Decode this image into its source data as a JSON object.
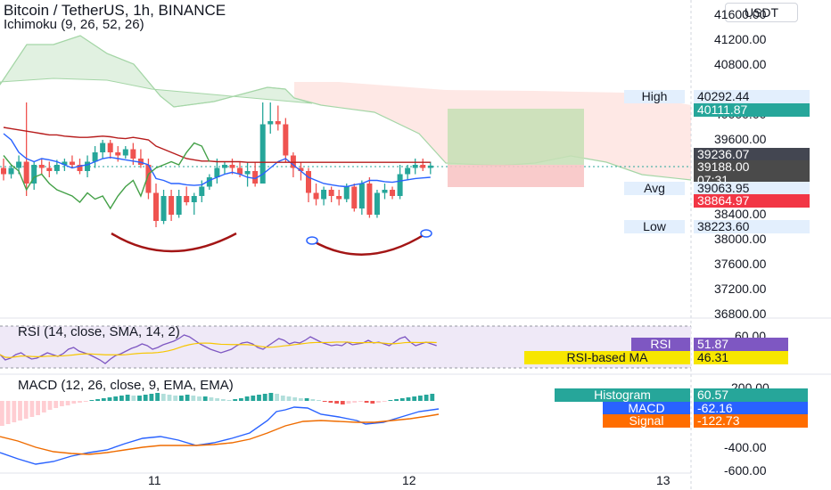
{
  "header": {
    "title": "Bitcoin / TetherUS, 1h, BINANCE",
    "indicator": "Ichimoku (9, 26, 52, 26)",
    "currency": "USDT"
  },
  "price_axis": {
    "ticks": [
      "41600.00",
      "41200.00",
      "40800.00",
      "40000.00",
      "39600.00",
      "38400.00",
      "38000.00",
      "37600.00",
      "37200.00",
      "36800.00"
    ]
  },
  "price_labels": {
    "high": {
      "name": "High",
      "value": "40292.44"
    },
    "span_a": {
      "value": "40111.87",
      "color": "#26a69a"
    },
    "last": {
      "value": "39236.07",
      "color": "#434651"
    },
    "current": {
      "value": "39188.00",
      "countdown": "07:31",
      "color": "#4a4a4a"
    },
    "avg": {
      "name": "Avg",
      "value": "39063.95"
    },
    "span_b": {
      "value": "38864.97",
      "color": "#f23645"
    },
    "low": {
      "name": "Low",
      "value": "38223.60"
    }
  },
  "rsi": {
    "title": "RSI (14, close, SMA, 14, 2)",
    "axis_top": "60.00",
    "rsi_name": "RSI",
    "rsi_value": "51.87",
    "rsi_color": "#7e57c2",
    "ma_name": "RSI-based MA",
    "ma_value": "46.31",
    "ma_color": "#f7e600"
  },
  "macd": {
    "title": "MACD (12, 26, close, 9, EMA, EMA)",
    "axis_ticks": [
      "200.00",
      "-400.00",
      "-600.00"
    ],
    "histogram_name": "Histogram",
    "histogram_value": "60.57",
    "histogram_color": "#26a69a",
    "macd_name": "MACD",
    "macd_value": "-62.16",
    "macd_color": "#2962ff",
    "signal_name": "Signal",
    "signal_value": "-122.73",
    "signal_color": "#ff6d00"
  },
  "time_axis": {
    "labels": [
      "11",
      "12",
      "13"
    ]
  },
  "chart_data": {
    "type": "candlestick",
    "title": "Bitcoin / TetherUS, 1h, BINANCE",
    "ylim": [
      36600,
      41700
    ],
    "candles": [
      {
        "o": 39150,
        "h": 39300,
        "l": 38950,
        "c": 39050
      },
      {
        "o": 39050,
        "h": 39200,
        "l": 38980,
        "c": 39150
      },
      {
        "o": 39150,
        "h": 39350,
        "l": 39050,
        "c": 39250
      },
      {
        "o": 39250,
        "h": 40200,
        "l": 38700,
        "c": 38900
      },
      {
        "o": 38900,
        "h": 39250,
        "l": 38800,
        "c": 39200
      },
      {
        "o": 39200,
        "h": 39300,
        "l": 39050,
        "c": 39150
      },
      {
        "o": 39150,
        "h": 39250,
        "l": 39000,
        "c": 39100
      },
      {
        "o": 39100,
        "h": 39280,
        "l": 39050,
        "c": 39200
      },
      {
        "o": 39200,
        "h": 39300,
        "l": 39100,
        "c": 39250
      },
      {
        "o": 39250,
        "h": 39350,
        "l": 39150,
        "c": 39200
      },
      {
        "o": 39200,
        "h": 39300,
        "l": 39050,
        "c": 39100
      },
      {
        "o": 39100,
        "h": 39350,
        "l": 39000,
        "c": 39250
      },
      {
        "o": 39250,
        "h": 39500,
        "l": 39150,
        "c": 39400
      },
      {
        "o": 39400,
        "h": 39600,
        "l": 39300,
        "c": 39550
      },
      {
        "o": 39550,
        "h": 39600,
        "l": 39300,
        "c": 39400
      },
      {
        "o": 39400,
        "h": 39500,
        "l": 39250,
        "c": 39350
      },
      {
        "o": 39350,
        "h": 39500,
        "l": 39300,
        "c": 39450
      },
      {
        "o": 39450,
        "h": 39550,
        "l": 39200,
        "c": 39300
      },
      {
        "o": 39300,
        "h": 39450,
        "l": 39150,
        "c": 39200
      },
      {
        "o": 39200,
        "h": 39300,
        "l": 38650,
        "c": 38750
      },
      {
        "o": 38750,
        "h": 38900,
        "l": 38200,
        "c": 38300
      },
      {
        "o": 38300,
        "h": 38800,
        "l": 38250,
        "c": 38700
      },
      {
        "o": 38700,
        "h": 38800,
        "l": 38300,
        "c": 38400
      },
      {
        "o": 38400,
        "h": 38800,
        "l": 38350,
        "c": 38700
      },
      {
        "o": 38700,
        "h": 38850,
        "l": 38550,
        "c": 38600
      },
      {
        "o": 38600,
        "h": 38750,
        "l": 38400,
        "c": 38700
      },
      {
        "o": 38700,
        "h": 38950,
        "l": 38600,
        "c": 38850
      },
      {
        "o": 38850,
        "h": 39050,
        "l": 38800,
        "c": 39000
      },
      {
        "o": 39000,
        "h": 39300,
        "l": 38900,
        "c": 39150
      },
      {
        "o": 39150,
        "h": 39250,
        "l": 39050,
        "c": 39200
      },
      {
        "o": 39200,
        "h": 39300,
        "l": 39050,
        "c": 39150
      },
      {
        "o": 39150,
        "h": 39250,
        "l": 39000,
        "c": 39050
      },
      {
        "o": 39050,
        "h": 39250,
        "l": 38850,
        "c": 39100
      },
      {
        "o": 39100,
        "h": 39250,
        "l": 38850,
        "c": 38900
      },
      {
        "o": 38900,
        "h": 40200,
        "l": 38900,
        "c": 39850
      },
      {
        "o": 39850,
        "h": 40200,
        "l": 39700,
        "c": 39900
      },
      {
        "o": 39900,
        "h": 40150,
        "l": 39750,
        "c": 39850
      },
      {
        "o": 39850,
        "h": 39950,
        "l": 39250,
        "c": 39350
      },
      {
        "o": 39350,
        "h": 39400,
        "l": 39000,
        "c": 39150
      },
      {
        "o": 39150,
        "h": 39250,
        "l": 38950,
        "c": 39100
      },
      {
        "o": 39100,
        "h": 39150,
        "l": 38600,
        "c": 38750
      },
      {
        "o": 38750,
        "h": 38900,
        "l": 38550,
        "c": 38650
      },
      {
        "o": 38650,
        "h": 38850,
        "l": 38550,
        "c": 38800
      },
      {
        "o": 38800,
        "h": 38850,
        "l": 38600,
        "c": 38700
      },
      {
        "o": 38700,
        "h": 38800,
        "l": 38550,
        "c": 38650
      },
      {
        "o": 38650,
        "h": 38900,
        "l": 38600,
        "c": 38850
      },
      {
        "o": 38850,
        "h": 38900,
        "l": 38450,
        "c": 38500
      },
      {
        "o": 38500,
        "h": 38950,
        "l": 38400,
        "c": 38900
      },
      {
        "o": 38900,
        "h": 39000,
        "l": 38350,
        "c": 38400
      },
      {
        "o": 38400,
        "h": 38800,
        "l": 38350,
        "c": 38750
      },
      {
        "o": 38750,
        "h": 38900,
        "l": 38650,
        "c": 38800
      },
      {
        "o": 38800,
        "h": 38850,
        "l": 38650,
        "c": 38700
      },
      {
        "o": 38700,
        "h": 39200,
        "l": 38650,
        "c": 39050
      },
      {
        "o": 39050,
        "h": 39200,
        "l": 38950,
        "c": 39150
      },
      {
        "o": 39150,
        "h": 39300,
        "l": 39050,
        "c": 39200
      },
      {
        "o": 39200,
        "h": 39300,
        "l": 39100,
        "c": 39150
      },
      {
        "o": 39150,
        "h": 39250,
        "l": 39050,
        "c": 39188
      }
    ],
    "tenkan": [
      39700,
      39600,
      39400,
      39300,
      39250,
      39300,
      39280,
      39250,
      39200,
      39150,
      39180,
      39200,
      39250,
      39300,
      39320,
      39300,
      39280,
      39260,
      39240,
      39200,
      38980,
      38950,
      38900,
      38900,
      38880,
      38870,
      38880,
      38950,
      39000,
      39050,
      39080,
      39050,
      39000,
      38980,
      39050,
      39150,
      39250,
      39300,
      39200,
      39100,
      39000,
      38950,
      38900,
      38880,
      38860,
      38850,
      38880,
      38900,
      38950,
      38950,
      38930,
      38920,
      38940,
      38960,
      38980,
      38990,
      39000
    ],
    "kijun": [
      39800,
      39780,
      39760,
      39740,
      39720,
      39700,
      39680,
      39680,
      39660,
      39650,
      39640,
      39640,
      39650,
      39660,
      39650,
      39630,
      39620,
      39640,
      39620,
      39600,
      39500,
      39450,
      39400,
      39350,
      39300,
      39280,
      39260,
      39260,
      39250,
      39250,
      39250,
      39250,
      39240,
      39240,
      39240,
      39240,
      39240,
      39240,
      39240,
      39240,
      39240,
      39240,
      39240,
      39240,
      39240,
      39240,
      39240,
      39240,
      39240,
      39240,
      39240,
      39240,
      39240,
      39240,
      39240,
      39240,
      39240
    ],
    "chikou": [
      39350,
      39200,
      39100,
      38800,
      39000,
      39050,
      38900,
      38800,
      38750,
      38700,
      38600,
      38750,
      38650,
      38700,
      38500,
      38700,
      38850,
      38950,
      38700,
      39050,
      39150,
      39200,
      39250,
      39200,
      39400,
      39550,
      39500,
      39250
    ]
  }
}
